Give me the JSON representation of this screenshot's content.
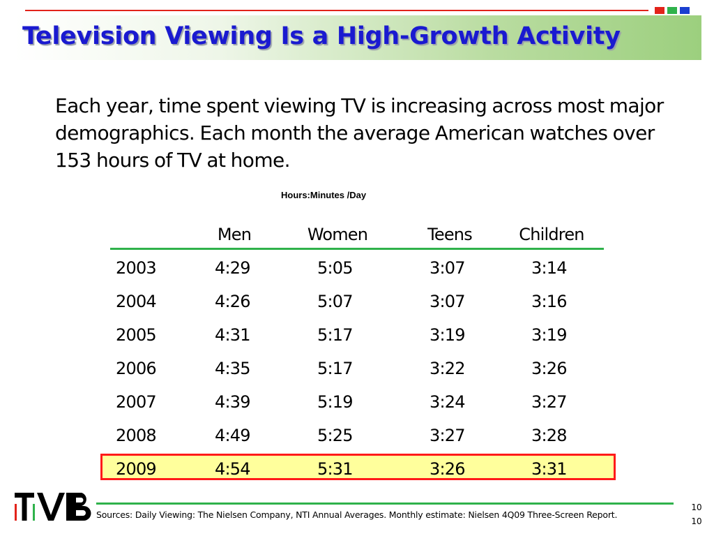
{
  "slide": {
    "title": "Television Viewing Is a High-Growth Activity",
    "intro": "Each year, time spent viewing TV is increasing across most major demographics. Each month the average American watches over 153 hours of TV at home.",
    "table_caption": "Hours:Minutes /Day",
    "accent_squares": [
      "#e2231a",
      "#2fb24b",
      "#1a3fd0"
    ]
  },
  "table": {
    "columns": [
      "",
      "Men",
      "Women",
      "Teens",
      "Children"
    ],
    "rows": [
      {
        "year": "2003",
        "men": "4:29",
        "women": "5:05",
        "teens": "3:07",
        "children": "3:14"
      },
      {
        "year": "2004",
        "men": "4:26",
        "women": "5:07",
        "teens": "3:07",
        "children": "3:16"
      },
      {
        "year": "2005",
        "men": "4:31",
        "women": "5:17",
        "teens": "3:19",
        "children": "3:19"
      },
      {
        "year": "2006",
        "men": "4:35",
        "women": "5:17",
        "teens": "3:22",
        "children": "3:26"
      },
      {
        "year": "2007",
        "men": "4:39",
        "women": "5:19",
        "teens": "3:24",
        "children": "3:27"
      },
      {
        "year": "2008",
        "men": "4:49",
        "women": "5:25",
        "teens": "3:27",
        "children": "3:28"
      },
      {
        "year": "2009",
        "men": "4:54",
        "women": "5:31",
        "teens": "3:26",
        "children": "3:31"
      }
    ],
    "highlighted_row": "2009",
    "highlight_fill": "#ffff9c",
    "highlight_border": "#ff1a1a",
    "rule_color": "#2fb24b"
  },
  "footer": {
    "logo_text": "TVB",
    "sources": "Sources:  Daily Viewing: The Nielsen Company, NTI Annual Averages. Monthly estimate: Nielsen 4Q09 Three-Screen Report.",
    "page_number_1": "10",
    "page_number_2": "10"
  }
}
